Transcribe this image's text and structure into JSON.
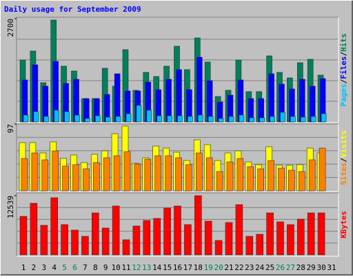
{
  "chart_data": {
    "type": "bar",
    "title": "Daily usage for September 2009",
    "categories": [
      "1",
      "2",
      "3",
      "4",
      "5",
      "6",
      "7",
      "8",
      "9",
      "10",
      "11",
      "12",
      "13",
      "14",
      "15",
      "16",
      "17",
      "18",
      "19",
      "20",
      "21",
      "22",
      "23",
      "24",
      "25",
      "26",
      "27",
      "28",
      "29",
      "30",
      "31"
    ],
    "category_colors": [
      "#000000",
      "#000000",
      "#000000",
      "#000000",
      "#00805c",
      "#00805c",
      "#000000",
      "#000000",
      "#000000",
      "#000000",
      "#000000",
      "#00805c",
      "#00805c",
      "#000000",
      "#000000",
      "#000000",
      "#000000",
      "#000000",
      "#00805c",
      "#00805c",
      "#000000",
      "#000000",
      "#000000",
      "#000000",
      "#000000",
      "#00805c",
      "#00805c",
      "#000000",
      "#000000",
      "#000000",
      "#000000"
    ],
    "legend_separator": "/",
    "panels": [
      {
        "ylim": [
          0,
          2700
        ],
        "yticks": [
          2700
        ],
        "series": [
          {
            "name": "Hits",
            "color": "#00805c",
            "values": [
              1620,
              1854,
              1026,
              2664,
              1458,
              1332,
              612,
              612,
              1404,
              936,
              1890,
              828,
              1296,
              1188,
              1458,
              1980,
              1368,
              2196,
              1566,
              666,
              828,
              1620,
              792,
              792,
              1728,
              1296,
              1152,
              1548,
              1638,
              1224,
              null
            ]
          },
          {
            "name": "Files",
            "color": "#0000ff",
            "values": [
              1098,
              1494,
              936,
              1584,
              1008,
              1116,
              612,
              612,
              720,
              1260,
              810,
              810,
              1044,
              846,
              1116,
              1368,
              846,
              1692,
              1080,
              522,
              702,
              1098,
              612,
              612,
              1260,
              990,
              864,
              1116,
              936,
              1134,
              null
            ]
          },
          {
            "name": "Pages",
            "color": "#00c0ff",
            "values": [
              180,
              270,
              144,
              306,
              270,
              180,
              90,
              162,
              126,
              144,
              216,
              432,
              306,
              162,
              162,
              162,
              144,
              180,
              144,
              90,
              144,
              180,
              108,
              108,
              144,
              252,
              144,
              126,
              144,
              216,
              null
            ]
          }
        ]
      },
      {
        "ylim": [
          0,
          97
        ],
        "yticks": [
          97
        ],
        "series": [
          {
            "name": "Visits",
            "color": "#ffff00",
            "values": [
              70,
              70,
              55,
              71,
              47,
              52,
              41,
              53,
              58,
              83,
              94,
              40,
              48,
              65,
              62,
              56,
              44,
              74,
              67,
              44,
              55,
              58,
              42,
              38,
              64,
              37,
              37,
              38,
              62,
              55,
              null
            ]
          },
          {
            "name": "Sites",
            "color": "#ff8000",
            "values": [
              47,
              55,
              45,
              58,
              36,
              38,
              32,
              41,
              48,
              51,
              57,
              39,
              46,
              51,
              51,
              48,
              38,
              55,
              48,
              28,
              42,
              47,
              35,
              32,
              44,
              33,
              30,
              28,
              45,
              62,
              null
            ]
          }
        ]
      },
      {
        "ylim": [
          0,
          12539
        ],
        "yticks": [
          12539
        ],
        "series": [
          {
            "name": "KBytes",
            "color": "#ff0000",
            "values": [
              8165,
              10935,
              6269,
              12101,
              6415,
              5249,
              3937,
              8894,
              5686,
              10352,
              3208,
              6124,
              7290,
              7727,
              9914,
              10352,
              6415,
              12539,
              7144,
              3062,
              6853,
              10643,
              3937,
              4374,
              8894,
              6998,
              6415,
              7582,
              8894,
              8894,
              null
            ]
          }
        ]
      }
    ]
  }
}
